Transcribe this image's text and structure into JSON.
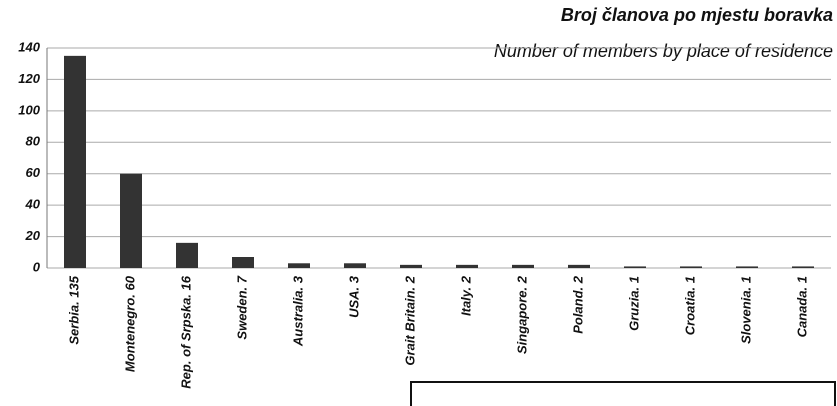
{
  "chart_data": {
    "type": "bar",
    "title": "Broj članova po mjestu boravka",
    "subtitle": "Number of members by place of residence",
    "categories": [
      "Serbia. 135",
      "Montenegro. 60",
      "Rep. of Srpska. 16",
      "Sweden. 7",
      "Australia. 3",
      "USA. 3",
      "Grait Britain. 2",
      "Italy. 2",
      "Singapore. 2",
      "Poland. 2",
      "Gruzia. 1",
      "Croatia. 1",
      "Slovenia. 1",
      "Canada. 1"
    ],
    "values": [
      135,
      60,
      16,
      7,
      3,
      3,
      2,
      2,
      2,
      2,
      1,
      1,
      1,
      1
    ],
    "color": "#333333",
    "ylim": [
      0,
      140
    ],
    "yticks": [
      0,
      20,
      40,
      60,
      80,
      100,
      120,
      140
    ],
    "grid": true
  }
}
